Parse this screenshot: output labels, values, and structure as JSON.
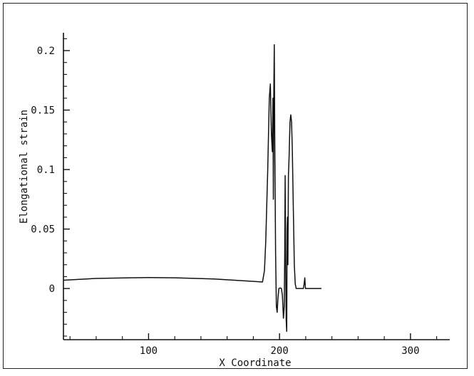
{
  "chart_data": {
    "type": "line",
    "title": "",
    "xlabel": "X Coordinate",
    "ylabel": "Elongational strain",
    "xlim": [
      35,
      330
    ],
    "ylim": [
      -0.043,
      0.215
    ],
    "x_ticks": [
      100,
      200,
      300
    ],
    "x_tick_labels": [
      "100",
      "200",
      "300"
    ],
    "y_ticks": [
      0,
      0.05,
      0.1,
      0.15,
      0.2
    ],
    "y_tick_labels": [
      "0",
      "0.05",
      "0.1",
      "0.15",
      "0.2"
    ],
    "grid": false,
    "legend": "none",
    "series": [
      {
        "color": "#111111",
        "x": [
          35,
          60,
          85,
          100,
          120,
          150,
          180,
          187,
          188.5,
          189.5,
          191,
          192.2,
          193,
          193.8,
          194.5,
          195,
          195.3,
          195.6,
          196,
          196.4,
          197,
          197.6,
          198.2,
          198.8,
          199.5,
          200.5,
          201.5,
          202.2,
          203,
          203.6,
          204,
          204.3,
          204.7,
          205.1,
          205.5,
          205.8,
          206.1,
          206.4,
          206.8,
          207.3,
          208,
          208.6,
          209.2,
          209.8,
          210.5,
          211.3,
          212,
          212.7,
          213.4,
          214.2,
          215.5,
          217,
          218.2,
          218.8,
          219.3,
          219.8,
          221,
          225,
          232
        ],
        "values": [
          0.007,
          0.0085,
          0.009,
          0.0092,
          0.009,
          0.008,
          0.006,
          0.0055,
          0.015,
          0.04,
          0.1,
          0.16,
          0.172,
          0.13,
          0.115,
          0.16,
          0.075,
          0.16,
          0.205,
          0.12,
          0.03,
          -0.015,
          -0.02,
          -0.008,
          0.0,
          0.0005,
          0.0,
          -0.006,
          -0.025,
          -0.015,
          0.03,
          0.095,
          0.02,
          -0.027,
          -0.036,
          0.05,
          0.06,
          0.02,
          0.095,
          0.11,
          0.14,
          0.146,
          0.14,
          0.115,
          0.07,
          0.02,
          0.004,
          0.0,
          0.0,
          0.0,
          0.0,
          0.0,
          0.0,
          0.004,
          0.009,
          0.0,
          0.0,
          0.0,
          0.0
        ]
      }
    ]
  }
}
